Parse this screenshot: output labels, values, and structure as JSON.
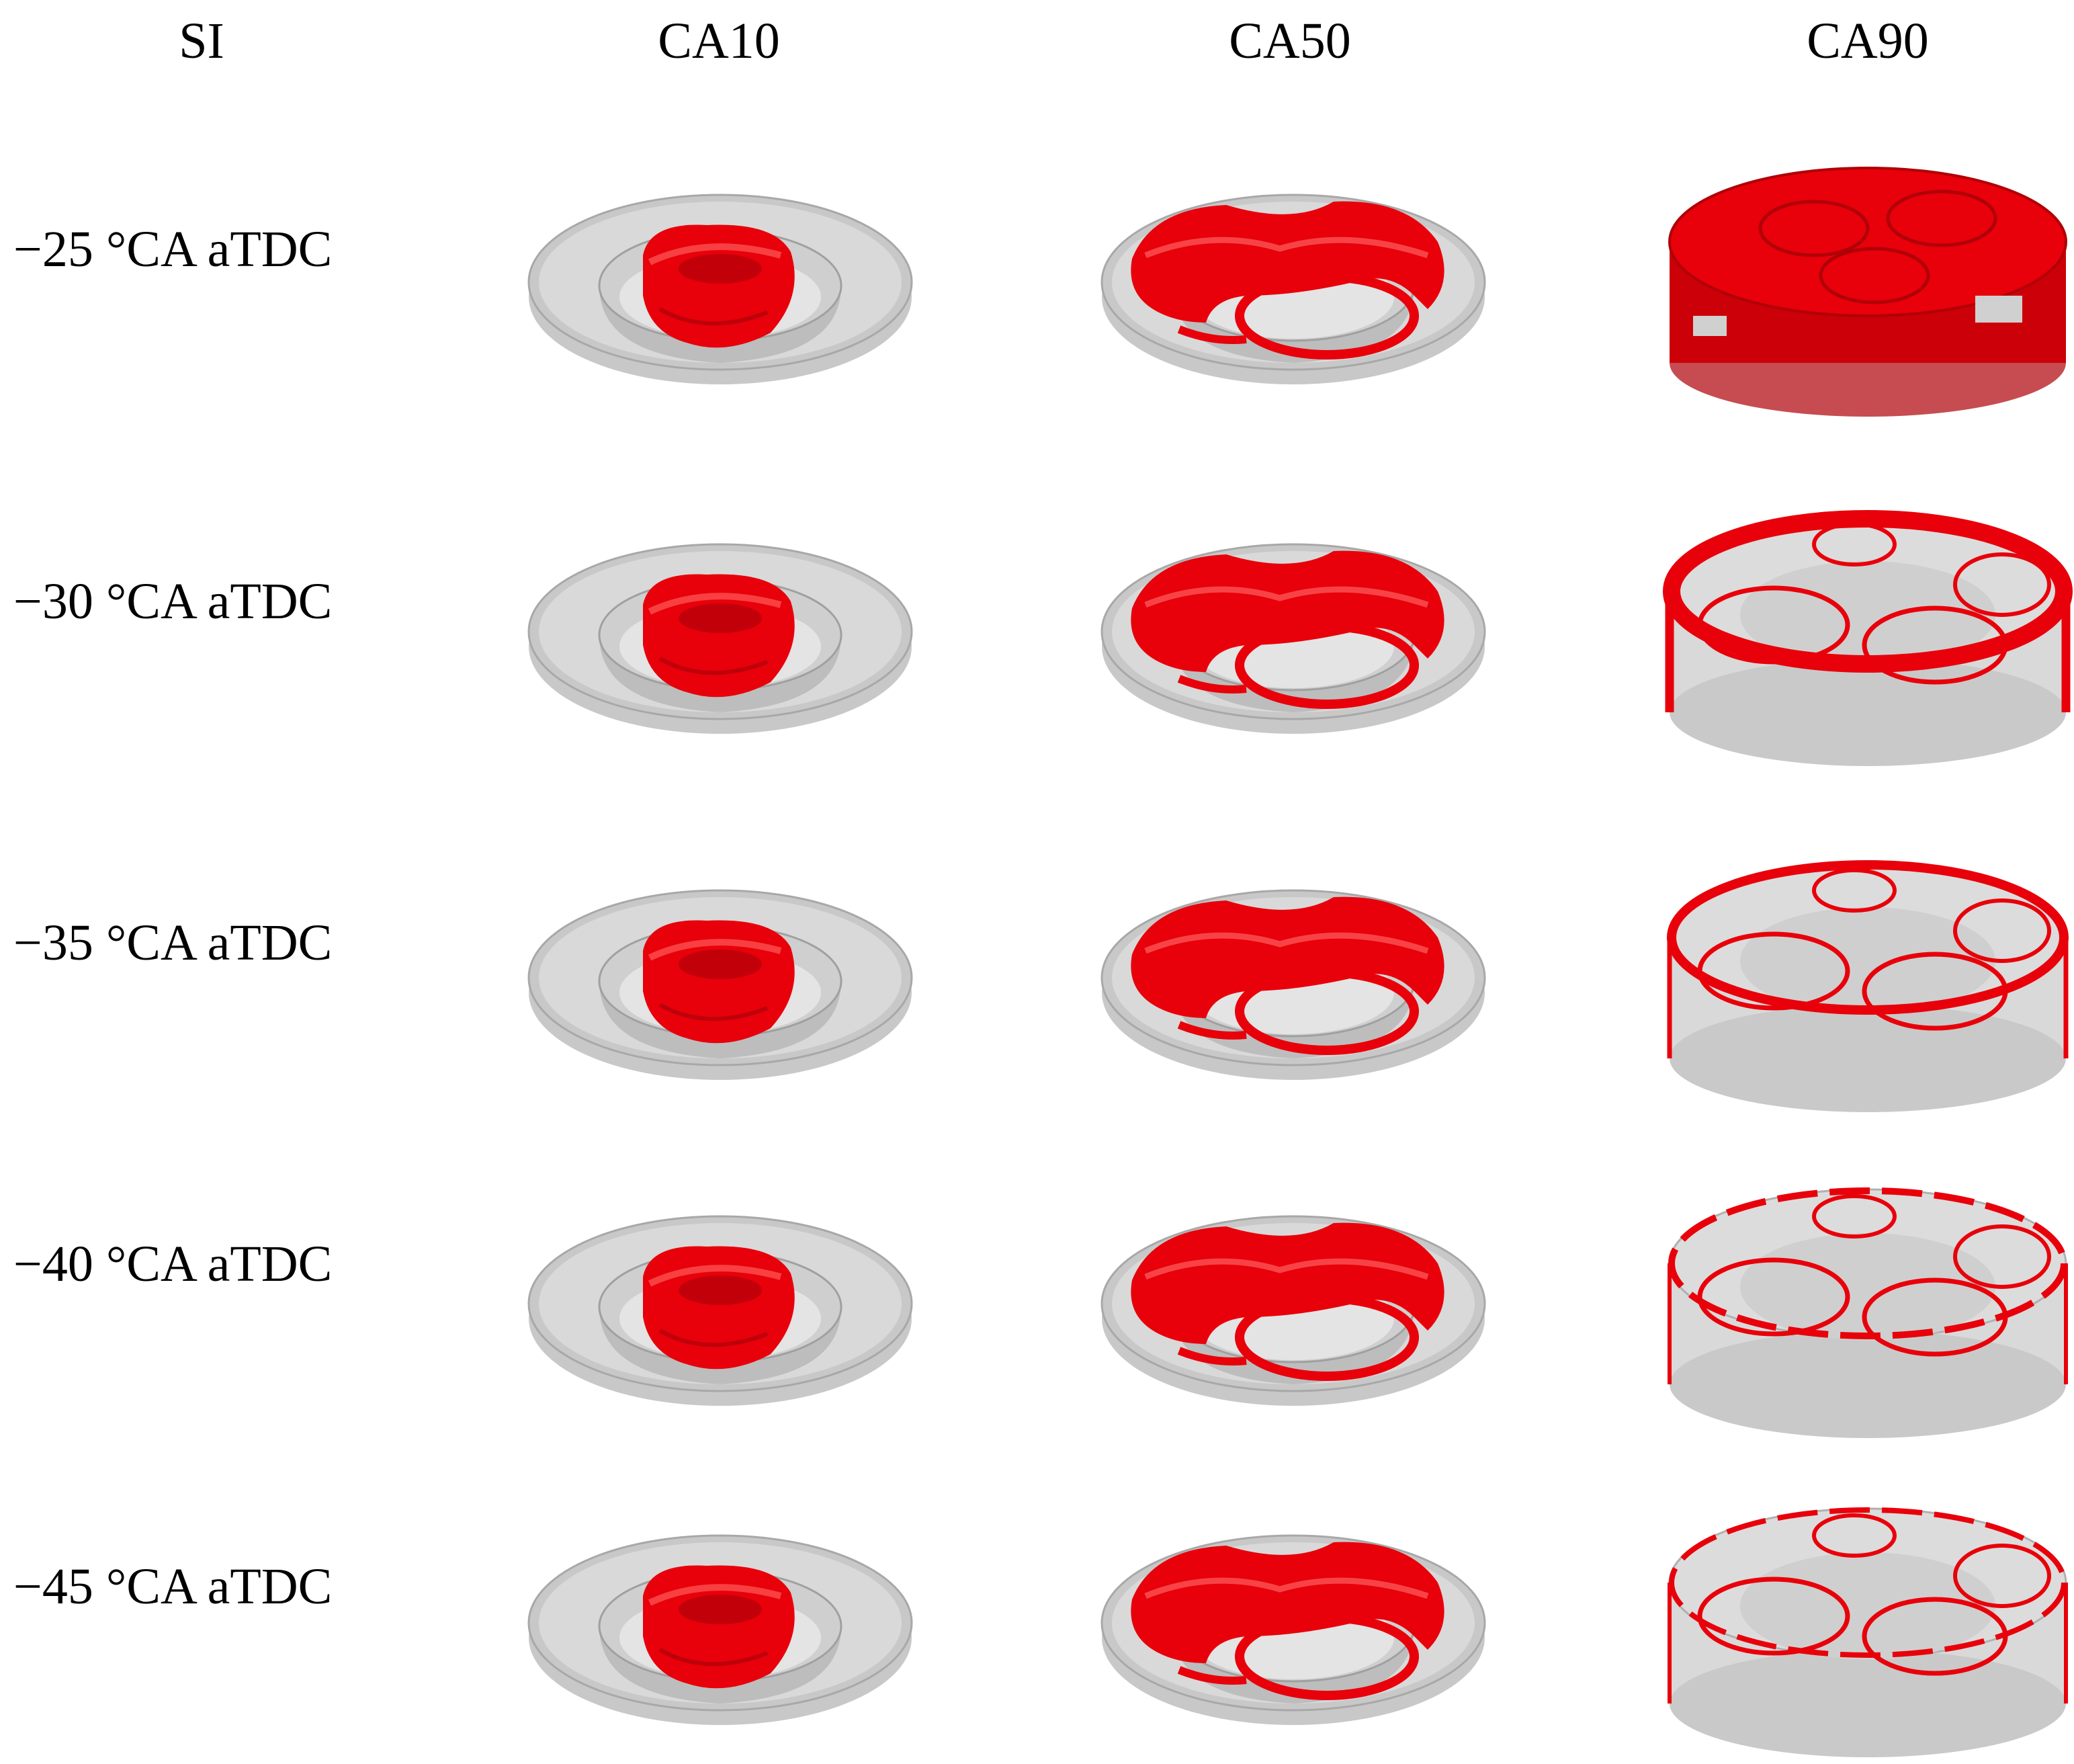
{
  "headers": {
    "si": "SI",
    "ca10": "CA10",
    "ca50": "CA50",
    "ca90": "CA90"
  },
  "rows": [
    {
      "label": "−25 °CA aTDC"
    },
    {
      "label": "−30 °CA aTDC"
    },
    {
      "label": "−35 °CA aTDC"
    },
    {
      "label": "−40 °CA aTDC"
    },
    {
      "label": "−45 °CA aTDC"
    }
  ],
  "colors": {
    "flame": "#e8000a",
    "chamber": "#c8c8c8",
    "background": "#ffffff"
  }
}
